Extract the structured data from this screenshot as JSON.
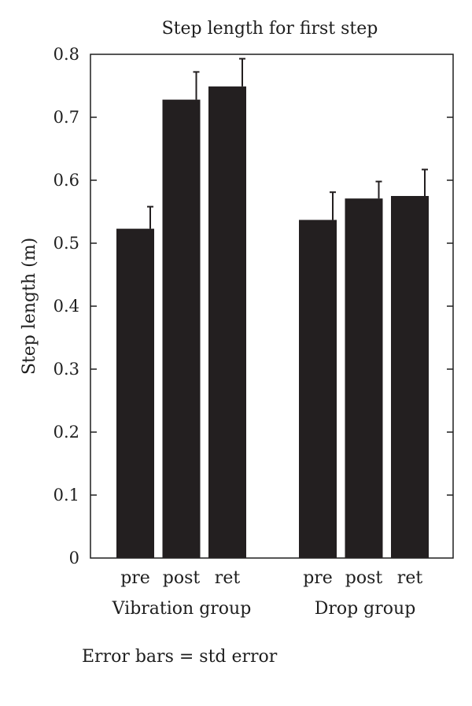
{
  "chart_data": {
    "type": "bar",
    "title": "Step length for first step",
    "ylabel": "Step length (m)",
    "xlabel": "",
    "ylim": [
      0,
      0.8
    ],
    "yticks": [
      "0",
      "0.1",
      "0.2",
      "0.3",
      "0.4",
      "0.5",
      "0.6",
      "0.7",
      "0.8"
    ],
    "groups": [
      {
        "name": "Vibration group",
        "bars": [
          {
            "label": "pre",
            "value": 0.523,
            "error": 0.035
          },
          {
            "label": "post",
            "value": 0.728,
            "error": 0.044
          },
          {
            "label": "ret",
            "value": 0.749,
            "error": 0.044
          }
        ]
      },
      {
        "name": "Drop group",
        "bars": [
          {
            "label": "pre",
            "value": 0.537,
            "error": 0.044
          },
          {
            "label": "post",
            "value": 0.571,
            "error": 0.027
          },
          {
            "label": "ret",
            "value": 0.575,
            "error": 0.042
          }
        ]
      }
    ],
    "bar_color": "#231f20",
    "grid": false
  },
  "note": "Error bars = std error"
}
